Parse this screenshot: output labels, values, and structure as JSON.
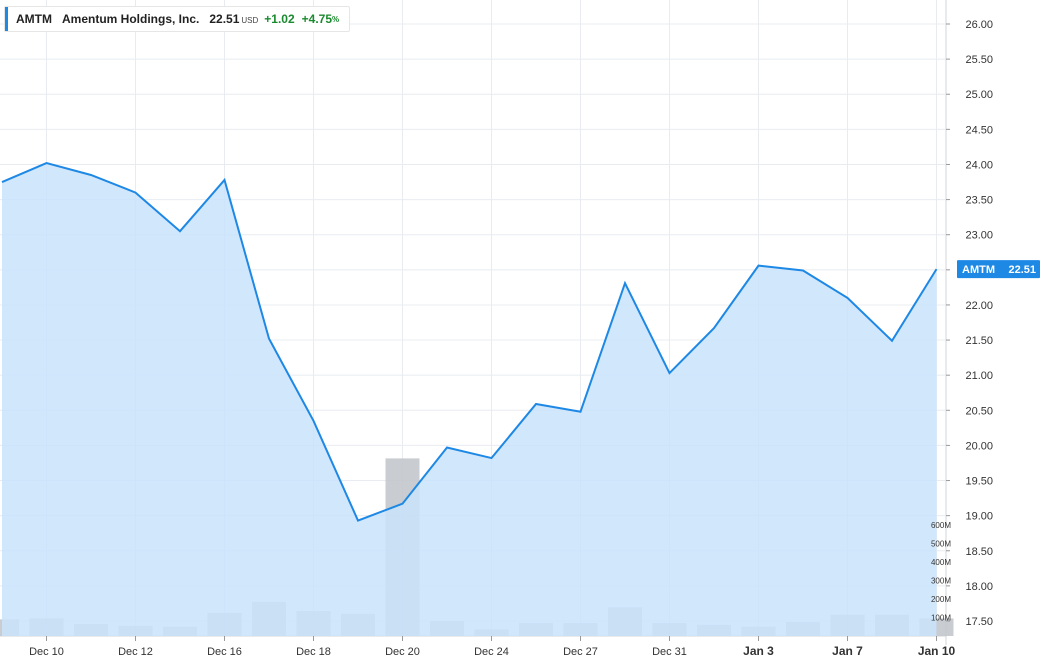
{
  "header": {
    "symbol": "AMTM",
    "company": "Amentum Holdings, Inc.",
    "price": "22.51",
    "currency": "USD",
    "change": "+1.02",
    "change_pct": "+4.75",
    "pct_sign": "%"
  },
  "price_tag": {
    "symbol": "AMTM",
    "value": "22.51"
  },
  "colors": {
    "line": "#1e88e5",
    "area": "#c9e3fb",
    "volume": "#c3c7cb",
    "positive": "#1a8a2e",
    "grid": "#e8ecf0"
  },
  "chart_data": {
    "type": "area",
    "y_range": [
      17.35,
      26.3
    ],
    "y_ticks": [
      17.5,
      18.0,
      18.5,
      19.0,
      19.5,
      20.0,
      20.5,
      21.0,
      21.5,
      22.0,
      22.5,
      23.0,
      23.5,
      24.0,
      24.5,
      25.0,
      25.5,
      26.0
    ],
    "y_tick_labels": [
      "17.50",
      "18.00",
      "18.50",
      "19.00",
      "19.50",
      "20.00",
      "20.50",
      "21.00",
      "21.50",
      "22.00",
      "22.50",
      "23.00",
      "23.50",
      "24.00",
      "24.50",
      "25.00",
      "25.50",
      "26.00"
    ],
    "x_labels": [
      {
        "label": "Dec 10",
        "index": 1,
        "bold": false
      },
      {
        "label": "Dec 12",
        "index": 3,
        "bold": false
      },
      {
        "label": "Dec 16",
        "index": 5,
        "bold": false
      },
      {
        "label": "Dec 18",
        "index": 7,
        "bold": false
      },
      {
        "label": "Dec 20",
        "index": 9,
        "bold": false
      },
      {
        "label": "Dec 24",
        "index": 11,
        "bold": false
      },
      {
        "label": "Dec 27",
        "index": 13,
        "bold": false
      },
      {
        "label": "Dec 31",
        "index": 15,
        "bold": false
      },
      {
        "label": "Jan 3",
        "index": 17,
        "bold": true
      },
      {
        "label": "Jan 7",
        "index": 19,
        "bold": true
      },
      {
        "label": "Jan 10",
        "index": 21,
        "bold": true
      }
    ],
    "close": [
      23.75,
      24.02,
      23.85,
      23.6,
      23.05,
      23.78,
      21.52,
      20.35,
      18.93,
      19.17,
      19.97,
      19.82,
      20.59,
      20.48,
      22.31,
      21.03,
      21.67,
      22.56,
      22.49,
      22.1,
      21.49,
      22.51
    ],
    "volume_millions": [
      90,
      95,
      65,
      55,
      50,
      125,
      185,
      135,
      120,
      960,
      80,
      35,
      70,
      70,
      155,
      70,
      60,
      50,
      75,
      115,
      115,
      95
    ],
    "volume_range_millions": [
      0,
      680
    ],
    "volume_ticks": [
      100,
      200,
      300,
      400,
      500,
      600
    ],
    "volume_tick_labels": [
      "100M",
      "200M",
      "300M",
      "400M",
      "500M",
      "600M"
    ],
    "last_value": 22.51,
    "grid": true
  }
}
